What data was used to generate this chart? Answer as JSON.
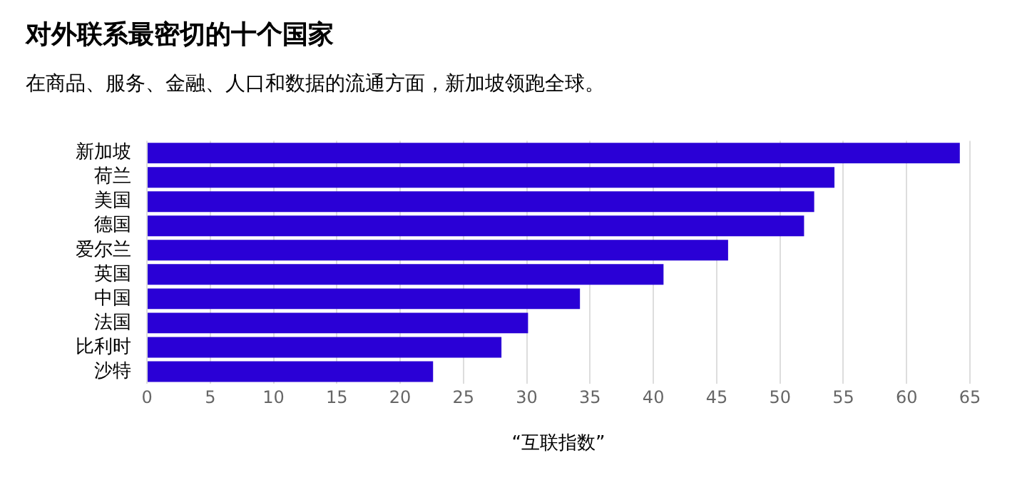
{
  "chart_data": {
    "type": "bar",
    "orientation": "horizontal",
    "title": "对外联系最密切的十个国家",
    "subtitle": "在商品、服务、金融、人口和数据的流通方面，新加坡领跑全球。",
    "xlabel": "“互联指数”",
    "categories": [
      "新加坡",
      "荷兰",
      "美国",
      "德国",
      "爱尔兰",
      "英国",
      "中国",
      "法国",
      "比利时",
      "沙特"
    ],
    "values": [
      64.2,
      54.3,
      52.7,
      51.9,
      45.9,
      40.8,
      34.2,
      30.1,
      28.0,
      22.6
    ],
    "color": "#2a00d6",
    "xlim": [
      0,
      65
    ],
    "xticks": [
      0,
      5,
      10,
      15,
      20,
      25,
      30,
      35,
      40,
      45,
      50,
      55,
      60,
      65
    ],
    "grid": "x"
  }
}
